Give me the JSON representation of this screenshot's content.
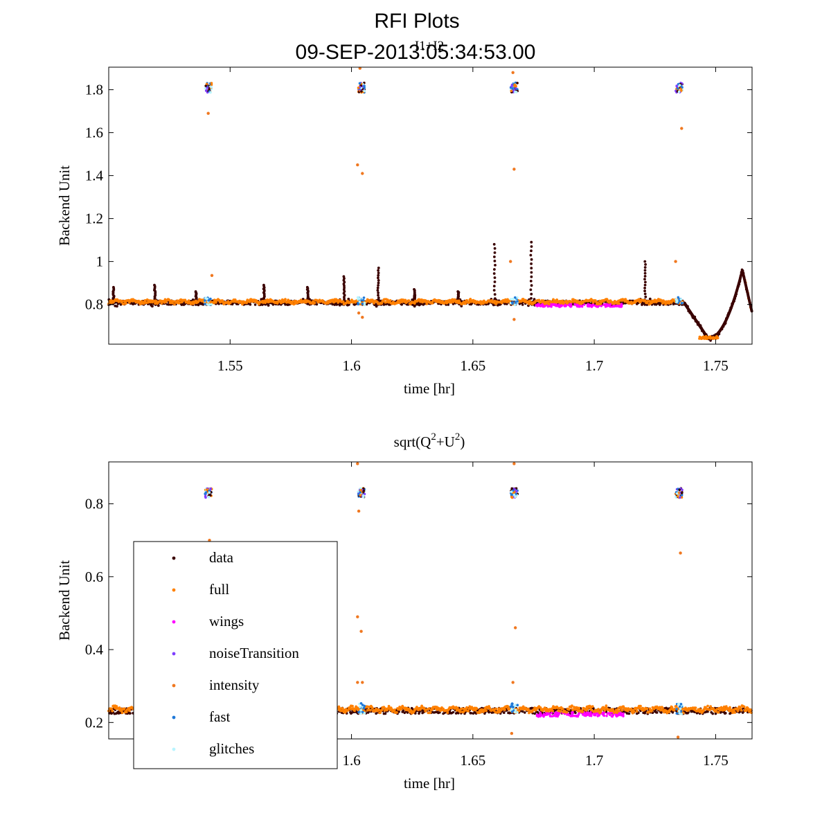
{
  "figure": {
    "title_line1": "RFI Plots",
    "title_line2": "09-SEP-2013:05:34:53.00"
  },
  "colors": {
    "data": "#3a0000",
    "full": "#ff8000",
    "wings": "#ff00ff",
    "noiseTransition": "#7f3fff",
    "intensity": "#f07820",
    "fast": "#1f78d8",
    "glitches": "#b8f4ff"
  },
  "chart_data": [
    {
      "type": "scatter",
      "title": "I1+I2",
      "xlabel": "time [hr]",
      "ylabel": "Backend Unit",
      "xlim": [
        1.5,
        1.765
      ],
      "ylim": [
        0.615,
        1.905
      ],
      "xticks": [
        1.55,
        1.6,
        1.65,
        1.7,
        1.75
      ],
      "xtick_labels": [
        "1.55",
        "1.6",
        "1.65",
        "1.7",
        "1.75"
      ],
      "yticks": [
        0.8,
        1.0,
        1.2,
        1.4,
        1.6,
        1.8
      ],
      "ytick_labels": [
        "0.8",
        "1",
        "1.2",
        "1.4",
        "1.6",
        "1.8"
      ],
      "baseline": 0.808,
      "data_spikes": [
        {
          "x": 1.502,
          "y": 0.88
        },
        {
          "x": 1.519,
          "y": 0.89
        },
        {
          "x": 1.536,
          "y": 0.86
        },
        {
          "x": 1.564,
          "y": 0.89
        },
        {
          "x": 1.582,
          "y": 0.88
        },
        {
          "x": 1.597,
          "y": 0.93
        },
        {
          "x": 1.611,
          "y": 0.97
        },
        {
          "x": 1.626,
          "y": 0.87
        },
        {
          "x": 1.644,
          "y": 0.86
        },
        {
          "x": 1.659,
          "y": 1.08
        },
        {
          "x": 1.674,
          "y": 1.09
        },
        {
          "x": 1.721,
          "y": 1.0
        }
      ],
      "noise_cal_times": [
        1.541,
        1.604,
        1.667,
        1.735
      ],
      "noise_cal_level": 1.81,
      "dip": {
        "start": 1.737,
        "min_x": 1.747,
        "min_y": 0.64,
        "peak_x": 1.761,
        "peak_y": 0.96,
        "end": 1.765
      },
      "intensity_outliers": [
        {
          "x": 1.541,
          "y": 1.69
        },
        {
          "x": 1.5425,
          "y": 0.935
        },
        {
          "x": 1.6025,
          "y": 1.45
        },
        {
          "x": 1.6045,
          "y": 1.41
        },
        {
          "x": 1.603,
          "y": 0.76
        },
        {
          "x": 1.6045,
          "y": 0.74
        },
        {
          "x": 1.6035,
          "y": 1.9
        },
        {
          "x": 1.6655,
          "y": 1.0
        },
        {
          "x": 1.667,
          "y": 1.43
        },
        {
          "x": 1.6665,
          "y": 1.88
        },
        {
          "x": 1.667,
          "y": 0.73
        },
        {
          "x": 1.7335,
          "y": 1.0
        },
        {
          "x": 1.736,
          "y": 1.62
        }
      ]
    },
    {
      "type": "scatter",
      "title_main": "sqrt(Q",
      "title_sup1": "2",
      "title_mid": "+U",
      "title_sup2": "2",
      "title_end": ")",
      "xlabel": "time [hr]",
      "ylabel": "Backend Unit",
      "xlim": [
        1.5,
        1.765
      ],
      "ylim": [
        0.155,
        0.915
      ],
      "xticks": [
        1.6,
        1.65,
        1.7,
        1.75
      ],
      "xtick_labels": [
        "1.6",
        "1.65",
        "1.7",
        "1.75"
      ],
      "yticks": [
        0.2,
        0.4,
        0.6,
        0.8
      ],
      "ytick_labels": [
        "0.2",
        "0.4",
        "0.6",
        "0.8"
      ],
      "baseline": 0.232,
      "noise_cal_times": [
        1.541,
        1.604,
        1.667,
        1.735
      ],
      "noise_cal_level": 0.83,
      "intensity_outliers": [
        {
          "x": 1.5415,
          "y": 0.7
        },
        {
          "x": 1.6025,
          "y": 0.49
        },
        {
          "x": 1.604,
          "y": 0.45
        },
        {
          "x": 1.6025,
          "y": 0.31
        },
        {
          "x": 1.6045,
          "y": 0.31
        },
        {
          "x": 1.603,
          "y": 0.78
        },
        {
          "x": 1.6025,
          "y": 0.91
        },
        {
          "x": 1.6675,
          "y": 0.46
        },
        {
          "x": 1.6665,
          "y": 0.31
        },
        {
          "x": 1.667,
          "y": 0.91
        },
        {
          "x": 1.666,
          "y": 0.17
        },
        {
          "x": 1.7355,
          "y": 0.665
        },
        {
          "x": 1.7345,
          "y": 0.16
        }
      ],
      "legend": {
        "location": "lower-left",
        "entries": [
          {
            "label": "data",
            "series": "data"
          },
          {
            "label": "full",
            "series": "full"
          },
          {
            "label": "wings",
            "series": "wings"
          },
          {
            "label": "noiseTransition",
            "series": "noiseTransition"
          },
          {
            "label": "intensity",
            "series": "intensity"
          },
          {
            "label": "fast",
            "series": "fast"
          },
          {
            "label": "glitches",
            "series": "glitches"
          }
        ]
      }
    }
  ]
}
